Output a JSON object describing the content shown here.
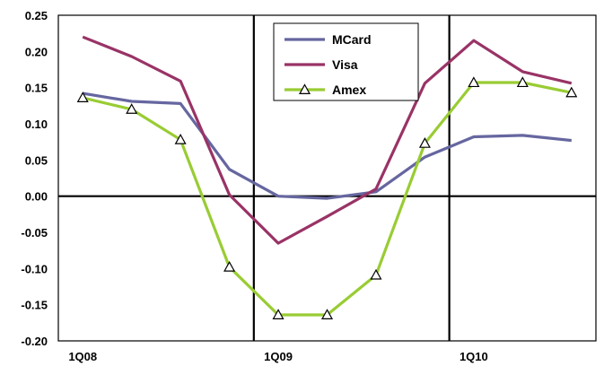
{
  "chart_data": {
    "type": "line",
    "x": [
      1,
      2,
      3,
      4,
      5,
      6,
      7,
      8,
      9,
      10,
      11
    ],
    "x_tick_labels": [
      "1Q08",
      "1Q09",
      "1Q10"
    ],
    "ylim": [
      -0.2,
      0.25
    ],
    "y_ticks": [
      "0.25",
      "0.20",
      "0.15",
      "0.10",
      "0.05",
      "0.00",
      "-0.05",
      "-0.10",
      "-0.15",
      "-0.20"
    ],
    "grid": false,
    "legend_position": "top-center",
    "series": [
      {
        "name": "MCard",
        "color": "#6666a0",
        "marker": "none",
        "values": [
          0.142,
          0.131,
          0.128,
          0.037,
          0.0,
          -0.003,
          0.006,
          0.054,
          0.082,
          0.084,
          0.077
        ]
      },
      {
        "name": "Visa",
        "color": "#993366",
        "marker": "none",
        "values": [
          0.22,
          0.193,
          0.159,
          0.002,
          -0.065,
          -0.028,
          0.01,
          0.156,
          0.215,
          0.172,
          0.156
        ]
      },
      {
        "name": "Amex",
        "color": "#99cc33",
        "marker": "triangle",
        "values": [
          0.136,
          0.12,
          0.078,
          -0.098,
          -0.164,
          -0.164,
          -0.109,
          0.073,
          0.157,
          0.157,
          0.143
        ]
      }
    ]
  }
}
